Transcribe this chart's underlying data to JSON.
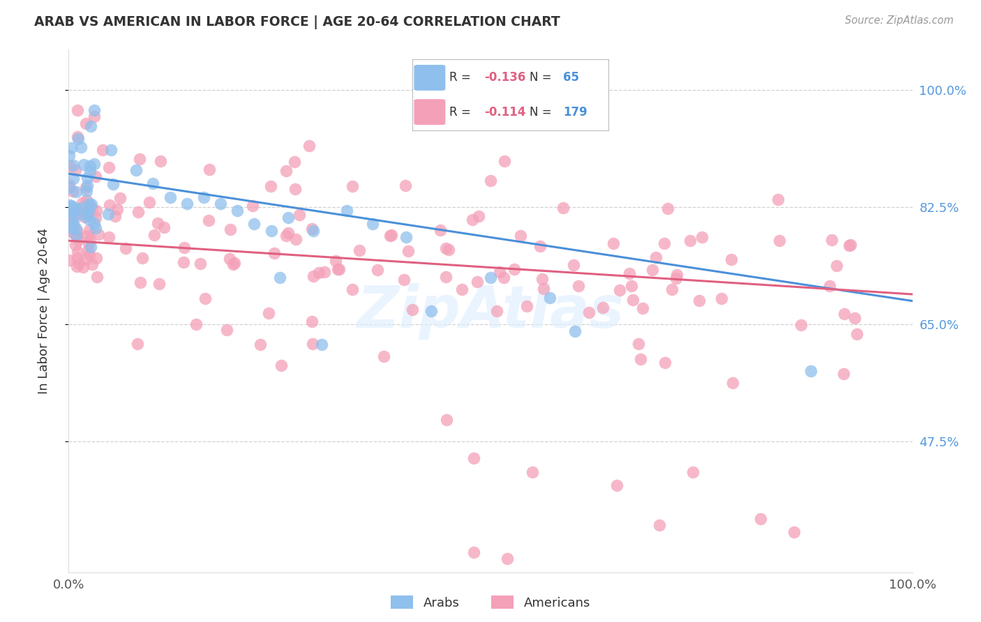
{
  "title": "ARAB VS AMERICAN IN LABOR FORCE | AGE 20-64 CORRELATION CHART",
  "source": "Source: ZipAtlas.com",
  "ylabel": "In Labor Force | Age 20-64",
  "xlim": [
    0.0,
    1.0
  ],
  "ylim": [
    0.28,
    1.06
  ],
  "yticks": [
    0.475,
    0.65,
    0.825,
    1.0
  ],
  "ytick_labels": [
    "47.5%",
    "65.0%",
    "82.5%",
    "100.0%"
  ],
  "arab_R": -0.136,
  "arab_N": 65,
  "american_R": -0.114,
  "american_N": 179,
  "arab_color": "#8fbfed",
  "american_color": "#f4a0b8",
  "arab_line_color": "#4a90d9",
  "american_line_color": "#e06080",
  "background_color": "#ffffff",
  "grid_color": "#cccccc",
  "title_color": "#333333",
  "source_color": "#999999",
  "label_color": "#333333",
  "tick_label_color_right": "#5599dd",
  "watermark_color": "#ddeeff",
  "arab_line_y0": 0.875,
  "arab_line_y1": 0.685,
  "american_line_y0": 0.775,
  "american_line_y1": 0.695
}
